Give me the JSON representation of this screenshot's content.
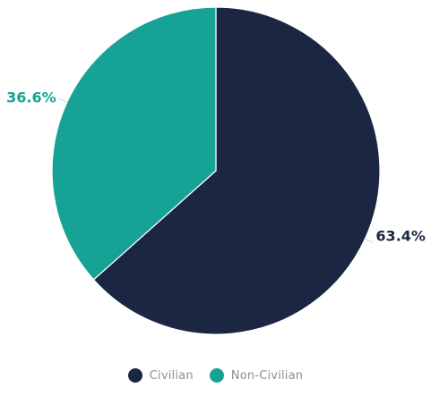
{
  "chart_data": {
    "type": "pie",
    "categories": [
      "Civilian",
      "Non-Civilian"
    ],
    "values": [
      63.4,
      36.6
    ],
    "labels": [
      "63.4%",
      "36.6%"
    ],
    "colors": [
      "#1b2642",
      "#16a396"
    ],
    "label_colors": [
      "#1b2642",
      "#16a396"
    ],
    "start": "12 o'clock",
    "direction": "clockwise",
    "legend_position": "bottom-center"
  },
  "legend": [
    {
      "label": "Civilian",
      "color": "#1b2642"
    },
    {
      "label": "Non-Civilian",
      "color": "#16a396"
    }
  ]
}
